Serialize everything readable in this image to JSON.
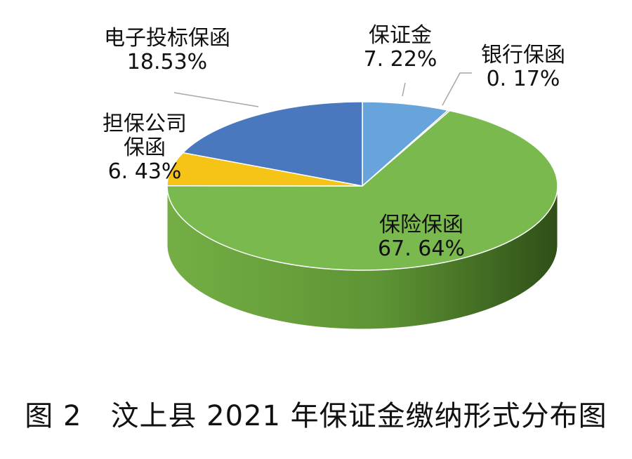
{
  "chart_data": {
    "type": "pie",
    "title": "",
    "slices": [
      {
        "label": "保证金",
        "value_text": "7. 22%",
        "value": 7.22,
        "color": "#67A4DC"
      },
      {
        "label": "银行保函",
        "value_text": "0. 17%",
        "value": 0.17,
        "color": "#9B9B9B"
      },
      {
        "label": "保险保函",
        "value_text": "67. 64%",
        "value": 67.64,
        "color": "#79B94E"
      },
      {
        "label_lines": [
          "担保公司",
          "保函"
        ],
        "value_text": "6. 43%",
        "value": 6.43,
        "color": "#F5C417"
      },
      {
        "label": "电子投标保函",
        "value_text": "18.53%",
        "value": 18.53,
        "color": "#4A78BE"
      }
    ],
    "side_color": "#5E8F2E"
  },
  "caption": "图 2　汶上县 2021 年保证金缴纳形式分布图"
}
